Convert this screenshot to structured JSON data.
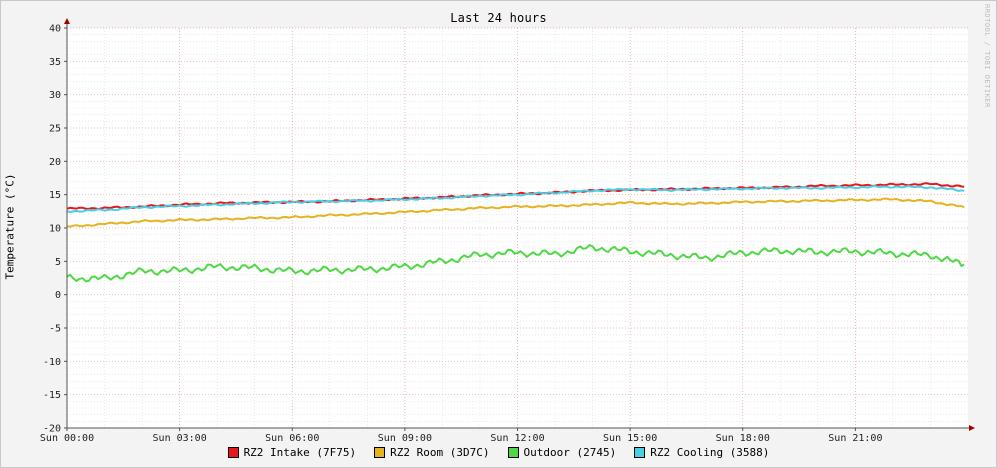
{
  "chart_data": {
    "type": "line",
    "title": "Last 24 hours",
    "ylabel": "Temperature (°C)",
    "watermark": "RRDTOOL / TOBI OETIKER",
    "ylim": [
      -20,
      40
    ],
    "yticks": [
      40,
      35,
      30,
      25,
      20,
      15,
      10,
      5,
      0,
      -5,
      -10,
      -15,
      -20
    ],
    "xlim_hours": [
      0,
      24
    ],
    "xticks": [
      {
        "label": "Sun 00:00",
        "hour": 0
      },
      {
        "label": "Sun 03:00",
        "hour": 3
      },
      {
        "label": "Sun 06:00",
        "hour": 6
      },
      {
        "label": "Sun 09:00",
        "hour": 9
      },
      {
        "label": "Sun 12:00",
        "hour": 12
      },
      {
        "label": "Sun 15:00",
        "hour": 15
      },
      {
        "label": "Sun 18:00",
        "hour": 18
      },
      {
        "label": "Sun 21:00",
        "hour": 21
      }
    ],
    "grid": true,
    "legend_position": "bottom",
    "x": [
      0,
      1,
      2,
      3,
      4,
      5,
      6,
      7,
      8,
      9,
      10,
      11,
      12,
      13,
      14,
      15,
      16,
      17,
      18,
      19,
      20,
      21,
      22,
      23,
      23.9
    ],
    "series": [
      {
        "name": "RZ2 Intake (7F75)",
        "color": "#e8171c",
        "values": [
          12.9,
          13.0,
          13.2,
          13.5,
          13.7,
          13.8,
          13.9,
          14.0,
          14.2,
          14.4,
          14.6,
          14.9,
          15.1,
          15.3,
          15.6,
          15.7,
          15.8,
          15.9,
          16.0,
          16.1,
          16.3,
          16.4,
          16.5,
          16.6,
          16.2
        ]
      },
      {
        "name": "RZ2 Room (3D7C)",
        "color": "#e3b320",
        "values": [
          10.2,
          10.6,
          11.0,
          11.2,
          11.3,
          11.5,
          11.6,
          11.9,
          12.1,
          12.4,
          12.7,
          13.0,
          13.2,
          13.3,
          13.5,
          13.8,
          13.6,
          13.7,
          13.9,
          14.0,
          14.1,
          14.2,
          14.3,
          14.0,
          13.1
        ]
      },
      {
        "name": "Outdoor (2745)",
        "color": "#4fd846",
        "values": [
          2.5,
          2.4,
          3.5,
          3.6,
          4.2,
          4.0,
          3.5,
          3.7,
          3.8,
          4.2,
          5.0,
          6.0,
          6.3,
          6.1,
          7.1,
          6.5,
          6.0,
          5.5,
          6.3,
          6.6,
          6.4,
          6.5,
          6.2,
          5.9,
          4.5
        ]
      },
      {
        "name": "RZ2 Cooling (3588)",
        "color": "#48cfe6",
        "values": [
          12.5,
          12.7,
          13.1,
          13.3,
          13.5,
          13.7,
          13.9,
          14.0,
          14.1,
          14.3,
          14.5,
          14.8,
          15.0,
          15.3,
          15.6,
          15.8,
          15.7,
          15.8,
          15.9,
          16.0,
          16.0,
          16.1,
          16.2,
          16.1,
          15.6
        ]
      }
    ]
  }
}
